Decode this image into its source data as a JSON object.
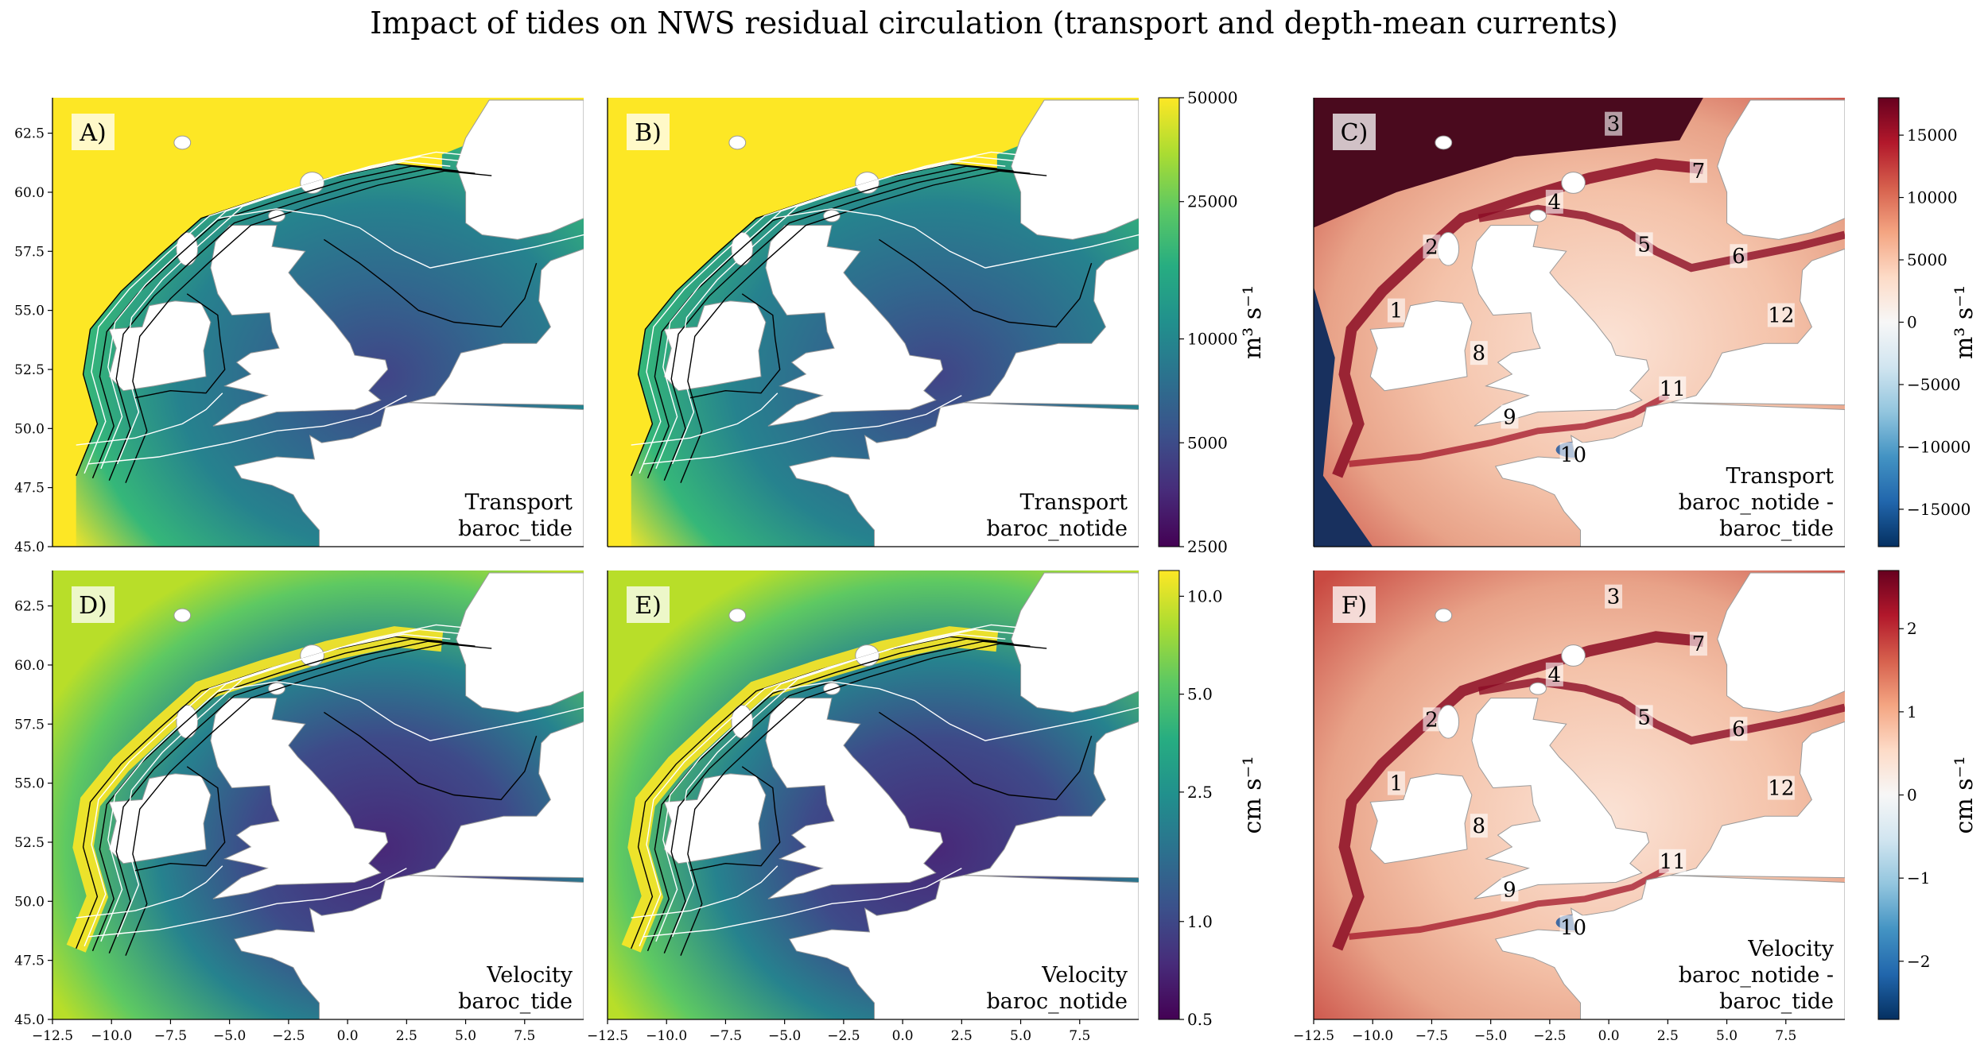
{
  "figure": {
    "title": "Impact of tides on NWS residual circulation (transport and depth-mean currents)"
  },
  "chart_data": [
    {
      "type": "heatmap",
      "panel": "A)",
      "row": 0,
      "col": 0,
      "caption": [
        "Transport",
        "baroc_tide"
      ],
      "colormap": "viridis",
      "xlim": [
        -12.5,
        10
      ],
      "ylim": [
        45,
        64
      ],
      "xticks": [],
      "yticks": [
        "45.0",
        "47.5",
        "50.0",
        "52.5",
        "55.0",
        "57.5",
        "60.0",
        "62.5"
      ],
      "flow_lines": true
    },
    {
      "type": "heatmap",
      "panel": "B)",
      "row": 0,
      "col": 1,
      "caption": [
        "Transport",
        "baroc_notide"
      ],
      "colormap": "viridis",
      "xlim": [
        -12.5,
        10
      ],
      "ylim": [
        45,
        64
      ],
      "xticks": [],
      "yticks": [],
      "flow_lines": true
    },
    {
      "type": "heatmap",
      "panel": "C)",
      "row": 0,
      "col": 2,
      "caption": [
        "Transport",
        "baroc_notide -",
        "baroc_tide"
      ],
      "colormap": "RdBu_r",
      "xlim": [
        -12.5,
        10
      ],
      "ylim": [
        45,
        64
      ],
      "xticks": [],
      "yticks": [],
      "regions": [
        {
          "n": "1",
          "lon": -9.0,
          "lat": 55.0
        },
        {
          "n": "2",
          "lon": -7.5,
          "lat": 57.7
        },
        {
          "n": "3",
          "lon": 0.2,
          "lat": 62.9
        },
        {
          "n": "4",
          "lon": -2.3,
          "lat": 59.6
        },
        {
          "n": "5",
          "lon": 1.5,
          "lat": 57.8
        },
        {
          "n": "6",
          "lon": 5.5,
          "lat": 57.3
        },
        {
          "n": "7",
          "lon": 3.8,
          "lat": 60.9
        },
        {
          "n": "8",
          "lon": -5.5,
          "lat": 53.2
        },
        {
          "n": "9",
          "lon": -4.2,
          "lat": 50.5
        },
        {
          "n": "10",
          "lon": -1.5,
          "lat": 48.9
        },
        {
          "n": "11",
          "lon": 2.7,
          "lat": 51.7
        },
        {
          "n": "12",
          "lon": 7.3,
          "lat": 54.8
        }
      ]
    },
    {
      "type": "heatmap",
      "panel": "D)",
      "row": 1,
      "col": 0,
      "caption": [
        "Velocity",
        "baroc_tide"
      ],
      "colormap": "viridis",
      "xlim": [
        -12.5,
        10
      ],
      "ylim": [
        45,
        64
      ],
      "xticks": [
        "−12.5",
        "−10.0",
        "−7.5",
        "−5.0",
        "−2.5",
        "0.0",
        "2.5",
        "5.0",
        "7.5"
      ],
      "yticks": [
        "45.0",
        "47.5",
        "50.0",
        "52.5",
        "55.0",
        "57.5",
        "60.0",
        "62.5"
      ],
      "flow_lines": true
    },
    {
      "type": "heatmap",
      "panel": "E)",
      "row": 1,
      "col": 1,
      "caption": [
        "Velocity",
        "baroc_notide"
      ],
      "colormap": "viridis",
      "xlim": [
        -12.5,
        10
      ],
      "ylim": [
        45,
        64
      ],
      "xticks": [
        "−12.5",
        "−10.0",
        "−7.5",
        "−5.0",
        "−2.5",
        "0.0",
        "2.5",
        "5.0",
        "7.5"
      ],
      "yticks": [],
      "flow_lines": true
    },
    {
      "type": "heatmap",
      "panel": "F)",
      "row": 1,
      "col": 2,
      "caption": [
        "Velocity",
        "baroc_notide -",
        "baroc_tide"
      ],
      "colormap": "RdBu_r",
      "xlim": [
        -12.5,
        10
      ],
      "ylim": [
        45,
        64
      ],
      "xticks": [
        "−12.5",
        "−10.0",
        "−7.5",
        "−5.0",
        "−2.5",
        "0.0",
        "2.5",
        "5.0",
        "7.5"
      ],
      "yticks": [],
      "regions": [
        {
          "n": "1",
          "lon": -9.0,
          "lat": 55.0
        },
        {
          "n": "2",
          "lon": -7.5,
          "lat": 57.7
        },
        {
          "n": "3",
          "lon": 0.2,
          "lat": 62.9
        },
        {
          "n": "4",
          "lon": -2.3,
          "lat": 59.6
        },
        {
          "n": "5",
          "lon": 1.5,
          "lat": 57.8
        },
        {
          "n": "6",
          "lon": 5.5,
          "lat": 57.3
        },
        {
          "n": "7",
          "lon": 3.8,
          "lat": 60.9
        },
        {
          "n": "8",
          "lon": -5.5,
          "lat": 53.2
        },
        {
          "n": "9",
          "lon": -4.2,
          "lat": 50.5
        },
        {
          "n": "10",
          "lon": -1.5,
          "lat": 48.9
        },
        {
          "n": "11",
          "lon": 2.7,
          "lat": 51.7
        },
        {
          "n": "12",
          "lon": 7.3,
          "lat": 54.8
        }
      ]
    }
  ],
  "colorbars": [
    {
      "row": 0,
      "side": "mid",
      "colormap": "viridis",
      "scale": "log",
      "range": [
        2500,
        50000
      ],
      "ticks": [
        "50000",
        "25000",
        "10000",
        "5000",
        "2500"
      ],
      "tick_values": [
        50000,
        25000,
        10000,
        5000,
        2500
      ],
      "label": "m³ s⁻¹"
    },
    {
      "row": 1,
      "side": "mid",
      "colormap": "viridis",
      "scale": "log",
      "range": [
        0.5,
        12
      ],
      "ticks": [
        "10.0",
        "5.0",
        "2.5",
        "1.0",
        "0.5"
      ],
      "tick_values": [
        10,
        5,
        2.5,
        1,
        0.5
      ],
      "label": "cm s⁻¹"
    },
    {
      "row": 0,
      "side": "right",
      "colormap": "RdBu_r",
      "scale": "linear",
      "range": [
        -18000,
        18000
      ],
      "ticks": [
        "15000",
        "10000",
        "5000",
        "0",
        "−5000",
        "−10000",
        "−15000"
      ],
      "tick_values": [
        15000,
        10000,
        5000,
        0,
        -5000,
        -10000,
        -15000
      ],
      "label": "m³ s⁻¹"
    },
    {
      "row": 1,
      "side": "right",
      "colormap": "RdBu_r",
      "scale": "linear",
      "range": [
        -2.7,
        2.7
      ],
      "ticks": [
        "2",
        "1",
        "0",
        "−1",
        "−2"
      ],
      "tick_values": [
        2,
        1,
        0,
        -1,
        -2
      ],
      "label": "cm s⁻¹"
    }
  ]
}
